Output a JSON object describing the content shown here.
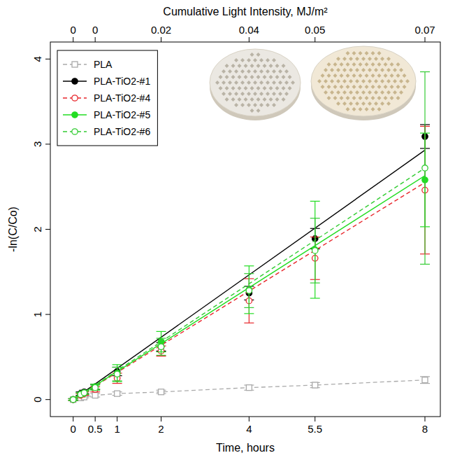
{
  "chart_data": {
    "type": "scatter",
    "x_label": "Time, hours",
    "y_label": "-ln(C/Co)",
    "x2_label": "Cumulative Light Intensity, MJ/m²",
    "x": [
      0,
      0.17,
      0.25,
      0.5,
      1,
      2,
      4,
      5.5,
      8
    ],
    "xlim": [
      -0.52,
      8.35
    ],
    "xticks": [
      0,
      0.5,
      1,
      2,
      4,
      5.5,
      8
    ],
    "ylim": [
      -0.2,
      4.2
    ],
    "yticks": [
      0,
      1,
      2,
      3,
      4
    ],
    "x2ticks": [
      {
        "x": 0,
        "value": 0
      },
      {
        "x": 0.5,
        "value": 0
      },
      {
        "x": 2,
        "value": 0.02
      },
      {
        "x": 4,
        "value": 0.04
      },
      {
        "x": 5.5,
        "value": 0.05
      },
      {
        "x": 8,
        "value": 0.07
      }
    ],
    "legend": "top-left",
    "grid": false,
    "series": [
      {
        "name": "PLA",
        "type": "line",
        "color": "#aaaaaa",
        "marker": "square-open",
        "line_style": "dashed",
        "values": [
          0,
          0.02,
          0.03,
          0.05,
          0.07,
          0.09,
          0.14,
          0.17,
          0.23
        ],
        "errors": [
          0.01,
          0.01,
          0.01,
          0.02,
          0.02,
          0.02,
          0.03,
          0.03,
          0.04
        ]
      },
      {
        "name": "PLA-TiO2-#1",
        "type": "scatter",
        "color": "#000000",
        "marker": "circle",
        "line_style": "solid",
        "values": [
          0,
          0.07,
          0.09,
          0.15,
          0.33,
          0.62,
          1.25,
          1.89,
          3.09
        ],
        "errors": [
          0.01,
          0.02,
          0.02,
          0.03,
          0.05,
          0.05,
          0.08,
          0.12,
          0.14
        ],
        "trend_x": [
          0,
          8
        ],
        "trend": [
          0,
          2.93
        ]
      },
      {
        "name": "PLA-TiO2-#4",
        "type": "scatter",
        "color": "#e8262b",
        "marker": "circle-open",
        "line_style": "dashed",
        "values": [
          0,
          0.05,
          0.07,
          0.12,
          0.25,
          0.57,
          1.16,
          1.66,
          2.46
        ],
        "errors": [
          0.01,
          0.02,
          0.02,
          0.03,
          0.06,
          0.06,
          0.26,
          0.25,
          0.75
        ],
        "trend_x": [
          0,
          8
        ],
        "trend": [
          0,
          2.55
        ]
      },
      {
        "name": "PLA-TiO2-#5",
        "type": "scatter",
        "color": "#22dd22",
        "marker": "circle",
        "line_style": "solid",
        "values": [
          0,
          0.06,
          0.08,
          0.15,
          0.31,
          0.68,
          1.29,
          1.76,
          2.58
        ],
        "errors": [
          0.01,
          0.02,
          0.02,
          0.03,
          0.1,
          0.12,
          0.28,
          0.57,
          0.55
        ],
        "trend_x": [
          0,
          8
        ],
        "trend": [
          0,
          2.63
        ]
      },
      {
        "name": "PLA-TiO2-#6",
        "type": "scatter",
        "color": "#33cc33",
        "marker": "circle-open",
        "line_style": "dashed",
        "values": [
          0,
          0.06,
          0.08,
          0.14,
          0.3,
          0.62,
          1.28,
          1.75,
          2.72
        ],
        "errors": [
          0.01,
          0.02,
          0.02,
          0.03,
          0.08,
          0.1,
          0.2,
          0.38,
          1.13
        ],
        "trend_x": [
          0,
          8
        ],
        "trend": [
          0,
          2.72
        ]
      }
    ]
  }
}
